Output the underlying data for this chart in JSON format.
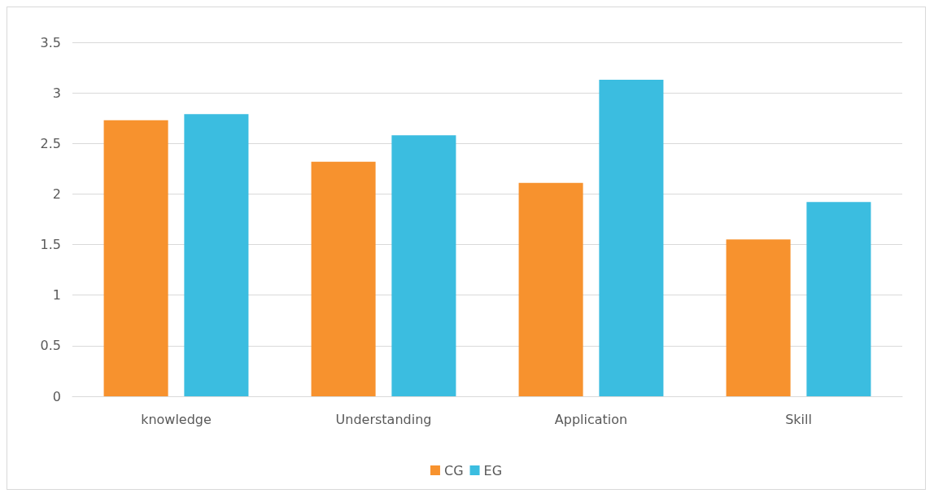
{
  "chart_data": {
    "type": "bar",
    "categories": [
      "knowledge",
      "Understanding",
      "Application",
      "Skill"
    ],
    "series": [
      {
        "name": "CG",
        "color": "#f7922e",
        "values": [
          2.73,
          2.32,
          2.11,
          1.55
        ]
      },
      {
        "name": "EG",
        "color": "#3bbde0",
        "values": [
          2.79,
          2.58,
          3.13,
          1.92
        ]
      }
    ],
    "ylim": [
      0,
      3.5
    ],
    "yticks": [
      0,
      0.5,
      1,
      1.5,
      2,
      2.5,
      3,
      3.5
    ],
    "grid": "y",
    "legend": "bottom"
  }
}
